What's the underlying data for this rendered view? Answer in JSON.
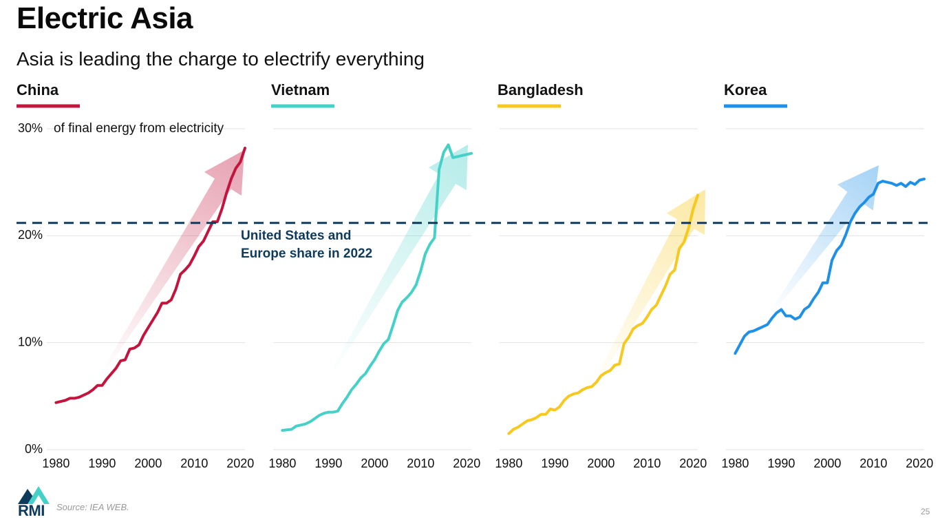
{
  "title": "Electric Asia",
  "subtitle": "Asia is leading the charge to electrify everything",
  "reference_line": {
    "value": 21.2,
    "label": "United States and Europe share in 2022"
  },
  "source": "Source: IEA WEB.",
  "logo": "RMI",
  "page_number": "25",
  "chart_data": [
    {
      "type": "line",
      "title": "China",
      "color": "#c2143c",
      "y_axis_label": "of final energy from electricity",
      "x": [
        1980,
        1981,
        1982,
        1983,
        1984,
        1985,
        1986,
        1987,
        1988,
        1989,
        1990,
        1991,
        1992,
        1993,
        1994,
        1995,
        1996,
        1997,
        1998,
        1999,
        2000,
        2001,
        2002,
        2003,
        2004,
        2005,
        2006,
        2007,
        2008,
        2009,
        2010,
        2011,
        2012,
        2013,
        2014,
        2015,
        2016,
        2017,
        2018,
        2019,
        2020,
        2021
      ],
      "values": [
        4.4,
        4.5,
        4.6,
        4.8,
        4.8,
        4.9,
        5.1,
        5.3,
        5.6,
        6.0,
        6.0,
        6.6,
        7.1,
        7.6,
        8.3,
        8.4,
        9.4,
        9.5,
        9.8,
        10.7,
        11.4,
        12.1,
        12.8,
        13.7,
        13.7,
        14.0,
        15.0,
        16.4,
        16.8,
        17.3,
        18.1,
        19.0,
        19.5,
        20.4,
        21.3,
        21.3,
        22.5,
        24.0,
        25.3,
        26.3,
        26.9,
        28.2
      ],
      "xlim": [
        1978,
        2021
      ],
      "xticks": [
        1980,
        1990,
        2000,
        2010,
        2020
      ],
      "ylim": [
        0,
        30
      ],
      "yticks": [
        {
          "value": 0,
          "label": "0%"
        },
        {
          "value": 10,
          "label": "10%"
        },
        {
          "value": 20,
          "label": "20%"
        },
        {
          "value": 30,
          "label": "30%"
        }
      ],
      "grid": true
    },
    {
      "type": "line",
      "title": "Vietnam",
      "color": "#45d0c8",
      "x": [
        1980,
        1981,
        1982,
        1983,
        1984,
        1985,
        1986,
        1987,
        1988,
        1989,
        1990,
        1991,
        1992,
        1993,
        1994,
        1995,
        1996,
        1997,
        1998,
        1999,
        2000,
        2001,
        2002,
        2003,
        2004,
        2005,
        2006,
        2007,
        2008,
        2009,
        2010,
        2011,
        2012,
        2013,
        2014,
        2015,
        2016,
        2017,
        2018,
        2019,
        2020,
        2021
      ],
      "values": [
        1.8,
        1.85,
        1.9,
        2.2,
        2.3,
        2.4,
        2.6,
        2.9,
        3.2,
        3.4,
        3.5,
        3.5,
        3.6,
        4.3,
        4.9,
        5.6,
        6.1,
        6.7,
        7.1,
        7.8,
        8.4,
        9.2,
        9.9,
        10.3,
        11.6,
        13.0,
        13.8,
        14.2,
        14.7,
        15.4,
        16.7,
        18.3,
        19.2,
        19.8,
        26.2,
        27.8,
        28.5,
        27.3,
        27.4,
        27.5,
        27.6,
        27.7
      ],
      "xlim": [
        1978,
        2021
      ],
      "xticks": [
        1980,
        1990,
        2000,
        2010,
        2020
      ],
      "ylim": [
        0,
        30
      ],
      "yticks": [
        0,
        10,
        20,
        30
      ],
      "grid": true
    },
    {
      "type": "line",
      "title": "Bangladesh",
      "color": "#f7c81e",
      "x": [
        1980,
        1981,
        1982,
        1983,
        1984,
        1985,
        1986,
        1987,
        1988,
        1989,
        1990,
        1991,
        1992,
        1993,
        1994,
        1995,
        1996,
        1997,
        1998,
        1999,
        2000,
        2001,
        2002,
        2003,
        2004,
        2005,
        2006,
        2007,
        2008,
        2009,
        2010,
        2011,
        2012,
        2013,
        2014,
        2015,
        2016,
        2017,
        2018,
        2019,
        2020,
        2021
      ],
      "values": [
        1.5,
        1.9,
        2.1,
        2.4,
        2.7,
        2.8,
        3.0,
        3.3,
        3.3,
        3.8,
        3.7,
        4.0,
        4.6,
        5.0,
        5.2,
        5.3,
        5.6,
        5.8,
        5.9,
        6.3,
        6.9,
        7.2,
        7.4,
        7.9,
        8.0,
        9.9,
        10.5,
        11.3,
        11.6,
        11.8,
        12.4,
        13.1,
        13.5,
        14.4,
        15.3,
        16.4,
        16.8,
        18.8,
        19.4,
        20.7,
        22.5,
        23.8
      ],
      "xlim": [
        1978,
        2021
      ],
      "xticks": [
        1980,
        1990,
        2000,
        2010,
        2020
      ],
      "ylim": [
        0,
        30
      ],
      "yticks": [
        0,
        10,
        20,
        30
      ],
      "grid": true
    },
    {
      "type": "line",
      "title": "Korea",
      "color": "#1e90e8",
      "x": [
        1980,
        1981,
        1982,
        1983,
        1984,
        1985,
        1986,
        1987,
        1988,
        1989,
        1990,
        1991,
        1992,
        1993,
        1994,
        1995,
        1996,
        1997,
        1998,
        1999,
        2000,
        2001,
        2002,
        2003,
        2004,
        2005,
        2006,
        2007,
        2008,
        2009,
        2010,
        2011,
        2012,
        2013,
        2014,
        2015,
        2016,
        2017,
        2018,
        2019,
        2020,
        2021
      ],
      "values": [
        9.0,
        9.8,
        10.6,
        11.0,
        11.1,
        11.3,
        11.5,
        11.7,
        12.3,
        12.8,
        13.1,
        12.5,
        12.5,
        12.2,
        12.4,
        13.1,
        13.4,
        14.1,
        14.7,
        15.6,
        15.6,
        17.7,
        18.6,
        19.1,
        20.1,
        21.3,
        22.1,
        22.7,
        23.1,
        23.6,
        23.9,
        24.9,
        25.1,
        25.0,
        24.9,
        24.7,
        24.9,
        24.6,
        25.0,
        24.8,
        25.2,
        25.3
      ],
      "xlim": [
        1978,
        2021
      ],
      "xticks": [
        1980,
        1990,
        2000,
        2010,
        2020
      ],
      "ylim": [
        0,
        30
      ],
      "yticks": [
        0,
        10,
        20,
        30
      ],
      "grid": true
    }
  ]
}
